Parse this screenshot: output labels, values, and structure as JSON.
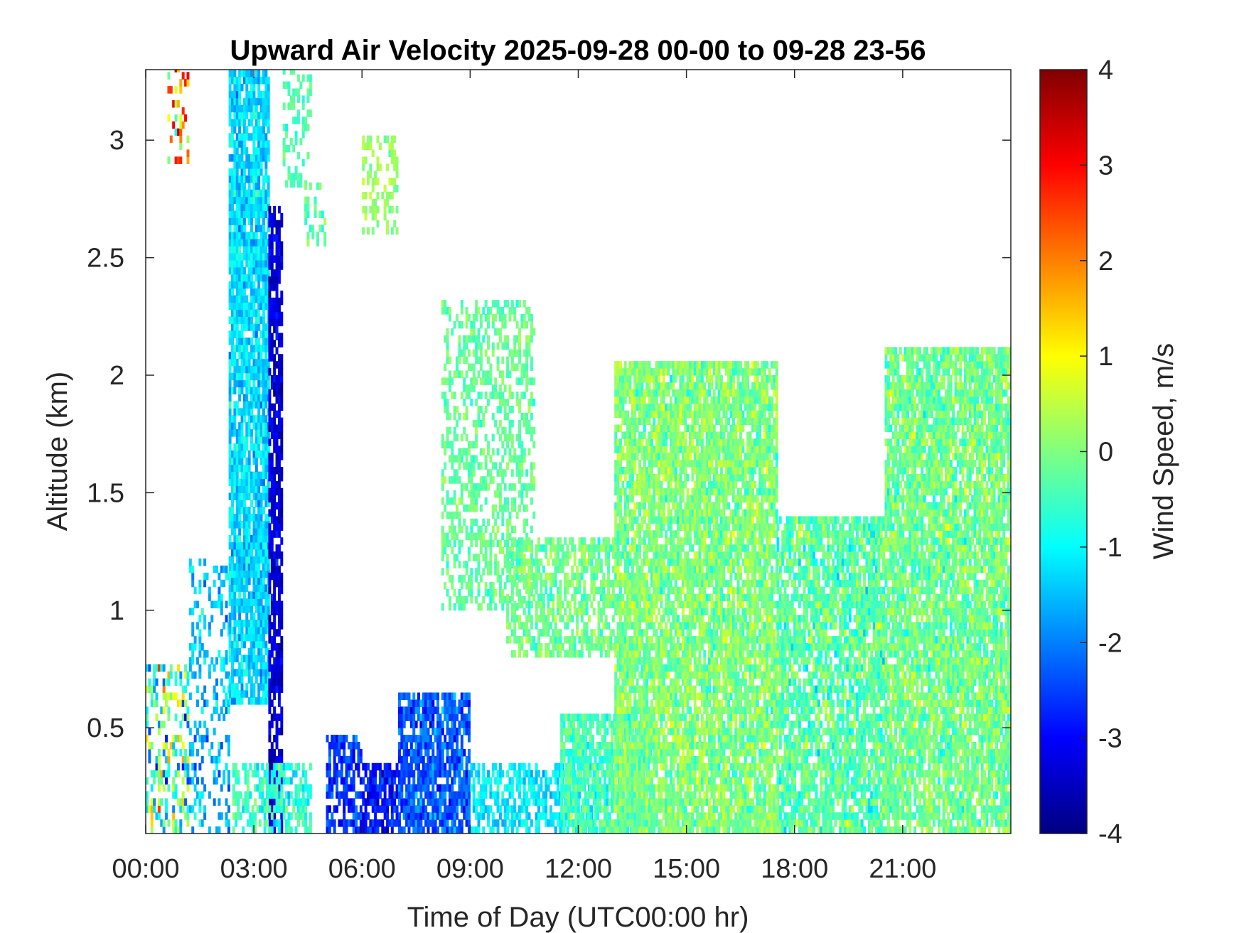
{
  "chart_data": {
    "type": "heatmap",
    "title": "Upward Air Velocity 2025-09-28 00-00 to 09-28 23-56",
    "xlabel": "Time of Day (UTC00:00 hr)",
    "ylabel": "Altitude (km)",
    "colorbar_label": "Wind Speed, m/s",
    "colormap": "jet",
    "xlim_hours": [
      0,
      24
    ],
    "ylim_km": [
      0.05,
      3.3
    ],
    "clim": [
      -4,
      4
    ],
    "x_ticks": [
      {
        "value": 0,
        "label": "00:00"
      },
      {
        "value": 3,
        "label": "03:00"
      },
      {
        "value": 6,
        "label": "06:00"
      },
      {
        "value": 9,
        "label": "09:00"
      },
      {
        "value": 12,
        "label": "12:00"
      },
      {
        "value": 15,
        "label": "15:00"
      },
      {
        "value": 18,
        "label": "18:00"
      },
      {
        "value": 21,
        "label": "21:00"
      }
    ],
    "y_ticks": [
      {
        "value": 0.5,
        "label": "0.5"
      },
      {
        "value": 1,
        "label": "1"
      },
      {
        "value": 1.5,
        "label": "1.5"
      },
      {
        "value": 2,
        "label": "2"
      },
      {
        "value": 2.5,
        "label": "2.5"
      },
      {
        "value": 3,
        "label": "3"
      }
    ],
    "colorbar_ticks": [
      {
        "value": 4,
        "label": "4"
      },
      {
        "value": 3,
        "label": "3"
      },
      {
        "value": 2,
        "label": "2"
      },
      {
        "value": 1,
        "label": "1"
      },
      {
        "value": 0,
        "label": "0"
      },
      {
        "value": -1,
        "label": "-1"
      },
      {
        "value": -2,
        "label": "-2"
      },
      {
        "value": -3,
        "label": "-3"
      },
      {
        "value": -4,
        "label": "-4"
      }
    ],
    "grid": false,
    "echo_regions": [
      {
        "t_start": 0.0,
        "t_end": 1.2,
        "alt_min": 0.05,
        "alt_max": 0.75,
        "mean": -0.5,
        "spread": 2.6,
        "density": 0.45
      },
      {
        "t_start": 0.6,
        "t_end": 1.2,
        "alt_min": 2.9,
        "alt_max": 3.3,
        "mean": 1.5,
        "spread": 3.0,
        "density": 0.25
      },
      {
        "t_start": 1.2,
        "t_end": 2.3,
        "alt_min": 0.05,
        "alt_max": 1.2,
        "mean": -1.5,
        "spread": 1.0,
        "density": 0.3
      },
      {
        "t_start": 2.3,
        "t_end": 3.4,
        "alt_min": 0.6,
        "alt_max": 3.3,
        "mean": -1.3,
        "spread": 0.7,
        "density": 0.85
      },
      {
        "t_start": 3.4,
        "t_end": 3.8,
        "alt_min": 0.05,
        "alt_max": 2.7,
        "mean": -3.3,
        "spread": 0.6,
        "density": 0.75
      },
      {
        "t_start": 2.4,
        "t_end": 4.6,
        "alt_min": 0.05,
        "alt_max": 0.35,
        "mean": -0.6,
        "spread": 0.8,
        "density": 0.6
      },
      {
        "t_start": 3.8,
        "t_end": 4.6,
        "alt_min": 2.8,
        "alt_max": 3.3,
        "mean": -0.4,
        "spread": 0.5,
        "density": 0.35
      },
      {
        "t_start": 4.4,
        "t_end": 5.0,
        "alt_min": 2.55,
        "alt_max": 2.8,
        "mean": -0.3,
        "spread": 0.6,
        "density": 0.4
      },
      {
        "t_start": 5.0,
        "t_end": 6.0,
        "alt_min": 0.05,
        "alt_max": 0.45,
        "mean": -2.6,
        "spread": 0.7,
        "density": 0.7
      },
      {
        "t_start": 6.0,
        "t_end": 7.0,
        "alt_min": 0.05,
        "alt_max": 0.35,
        "mean": -2.8,
        "spread": 0.8,
        "density": 0.7
      },
      {
        "t_start": 6.0,
        "t_end": 7.0,
        "alt_min": 2.6,
        "alt_max": 3.0,
        "mean": 0.2,
        "spread": 0.5,
        "density": 0.4
      },
      {
        "t_start": 7.0,
        "t_end": 9.0,
        "alt_min": 0.05,
        "alt_max": 0.65,
        "mean": -2.3,
        "spread": 0.8,
        "density": 0.8
      },
      {
        "t_start": 8.2,
        "t_end": 10.8,
        "alt_min": 1.0,
        "alt_max": 2.3,
        "mean": -0.2,
        "spread": 0.5,
        "density": 0.45
      },
      {
        "t_start": 9.0,
        "t_end": 12.5,
        "alt_min": 0.05,
        "alt_max": 0.35,
        "mean": -1.1,
        "spread": 0.6,
        "density": 0.6
      },
      {
        "t_start": 10.0,
        "t_end": 13.0,
        "alt_min": 0.8,
        "alt_max": 1.3,
        "mean": -0.1,
        "spread": 0.6,
        "density": 0.6
      },
      {
        "t_start": 11.5,
        "t_end": 14.0,
        "alt_min": 0.05,
        "alt_max": 0.55,
        "mean": -0.4,
        "spread": 0.7,
        "density": 0.8
      },
      {
        "t_start": 13.0,
        "t_end": 17.5,
        "alt_min": 0.05,
        "alt_max": 2.05,
        "mean": 0.0,
        "spread": 0.8,
        "density": 0.85
      },
      {
        "t_start": 17.5,
        "t_end": 20.5,
        "alt_min": 0.05,
        "alt_max": 1.4,
        "mean": -0.3,
        "spread": 0.9,
        "density": 0.8
      },
      {
        "t_start": 20.5,
        "t_end": 24.0,
        "alt_min": 0.05,
        "alt_max": 2.1,
        "mean": -0.1,
        "spread": 0.8,
        "density": 0.85
      }
    ]
  }
}
